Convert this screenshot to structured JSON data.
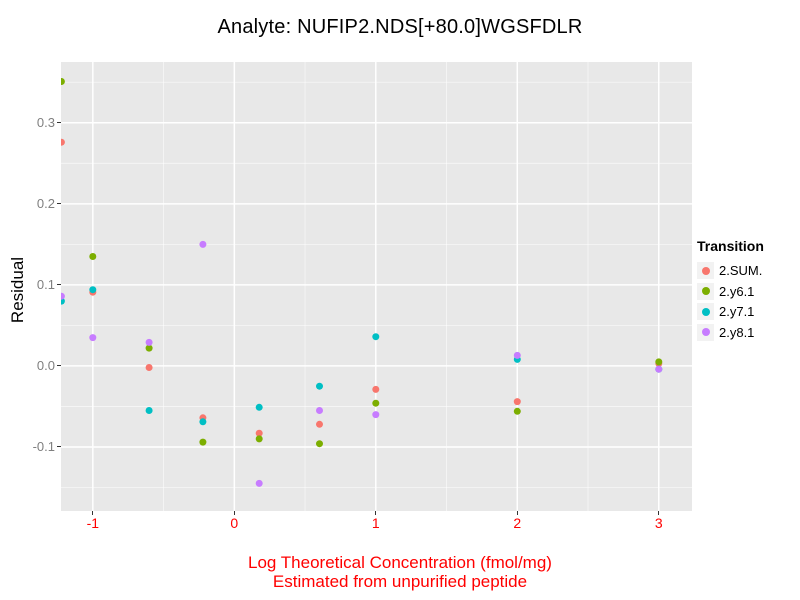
{
  "title": "Analyte: NUFIP2.NDS[+80.0]WGSFDLR",
  "chart_data": {
    "type": "scatter",
    "title": "Analyte: NUFIP2.NDS[+80.0]WGSFDLR",
    "xlabel": "Log Theoretical Concentration (fmol/mg)",
    "xlabel_line2": "Estimated from unpurified peptide",
    "ylabel": "Residual",
    "xlim": [
      -1.225,
      3.235
    ],
    "ylim": [
      -0.179,
      0.375
    ],
    "x_ticks": [
      -1,
      0,
      1,
      2,
      3
    ],
    "x_tick_labels": [
      "-1",
      "0",
      "1",
      "2",
      "3"
    ],
    "y_ticks": [
      0.3,
      0.2,
      0.1,
      0.0,
      -0.1
    ],
    "y_tick_labels": [
      "0.3",
      "0.2",
      "0.1",
      "0.0",
      "-0.1"
    ],
    "x_minor_ticks": [
      -0.5,
      0.5,
      1.5,
      2.5
    ],
    "y_minor_ticks": [
      0.35,
      0.25,
      0.15,
      0.05,
      -0.05,
      -0.15
    ],
    "grid": true,
    "legend_position": "right",
    "legend_title": "Transition",
    "series": [
      {
        "name": "2.SUM.",
        "color": "#F8766D",
        "points": [
          [
            -1.222,
            0.276
          ],
          [
            -1.0,
            0.091
          ],
          [
            -0.602,
            -0.002
          ],
          [
            -0.222,
            -0.064
          ],
          [
            0.176,
            -0.083
          ],
          [
            0.602,
            -0.072
          ],
          [
            1.0,
            -0.029
          ],
          [
            2.0,
            -0.044
          ],
          [
            3.0,
            0.003
          ]
        ]
      },
      {
        "name": "2.y6.1",
        "color": "#7CAE00",
        "points": [
          [
            -1.222,
            0.351
          ],
          [
            -1.0,
            0.135
          ],
          [
            -0.602,
            0.022
          ],
          [
            -0.222,
            -0.094
          ],
          [
            0.176,
            -0.09
          ],
          [
            0.602,
            -0.096
          ],
          [
            1.0,
            -0.046
          ],
          [
            2.0,
            -0.056
          ],
          [
            3.0,
            0.005
          ]
        ]
      },
      {
        "name": "2.y7.1",
        "color": "#00BFC4",
        "points": [
          [
            -1.222,
            0.08
          ],
          [
            -1.0,
            0.094
          ],
          [
            -0.602,
            -0.055
          ],
          [
            -0.222,
            -0.069
          ],
          [
            0.176,
            -0.051
          ],
          [
            0.602,
            -0.025
          ],
          [
            1.0,
            0.036
          ],
          [
            2.0,
            0.008
          ],
          [
            3.0,
            -0.004
          ]
        ]
      },
      {
        "name": "2.y8.1",
        "color": "#C77CFF",
        "points": [
          [
            -1.222,
            0.086
          ],
          [
            -1.0,
            0.035
          ],
          [
            -0.602,
            0.029
          ],
          [
            -0.222,
            0.15
          ],
          [
            0.176,
            -0.145
          ],
          [
            0.602,
            -0.055
          ],
          [
            1.0,
            -0.06
          ],
          [
            2.0,
            0.013
          ],
          [
            3.0,
            -0.004
          ]
        ]
      }
    ]
  },
  "colors": {
    "panel_bg": "#E8E8E8",
    "grid_major": "#FFFFFF",
    "grid_minor": "#FFFFFF",
    "x_text": "#FF0000",
    "y_tick_text": "#7F7F7F",
    "tick_mark": "#333333",
    "legend_key_bg": "#F2F2F2"
  }
}
